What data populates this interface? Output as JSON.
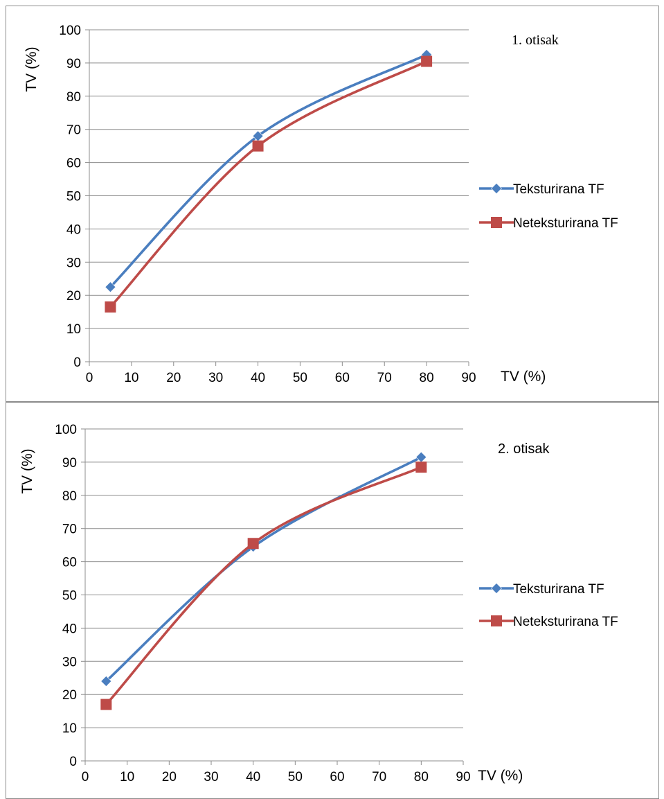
{
  "chart_data": [
    {
      "type": "line",
      "title": "1. otisak",
      "xlabel": "TV (%)",
      "ylabel": "TV (%)",
      "xlim": [
        0,
        90
      ],
      "ylim": [
        0,
        100
      ],
      "xticks": [
        "0",
        "10",
        "20",
        "30",
        "40",
        "50",
        "60",
        "70",
        "80",
        "90"
      ],
      "yticks": [
        "0",
        "10",
        "20",
        "30",
        "40",
        "50",
        "60",
        "70",
        "80",
        "90",
        "100"
      ],
      "grid": "horizontal",
      "legend": "right",
      "x": [
        5,
        40,
        80
      ],
      "series": [
        {
          "name": "Teksturirana TF",
          "values": [
            22.5,
            68,
            92.5
          ],
          "color": "#4a7ebf",
          "marker": "diamond"
        },
        {
          "name": "Neteksturirana TF",
          "values": [
            16.5,
            65,
            90.5
          ],
          "color": "#be4b48",
          "marker": "square"
        }
      ]
    },
    {
      "type": "line",
      "title": "2. otisak",
      "xlabel": "TV (%)",
      "ylabel": "TV (%)",
      "xlim": [
        0,
        90
      ],
      "ylim": [
        0,
        100
      ],
      "xticks": [
        "0",
        "10",
        "20",
        "30",
        "40",
        "50",
        "60",
        "70",
        "80",
        "90"
      ],
      "yticks": [
        "0",
        "10",
        "20",
        "30",
        "40",
        "50",
        "60",
        "70",
        "80",
        "90",
        "100"
      ],
      "grid": "horizontal",
      "legend": "right",
      "x": [
        5,
        40,
        80
      ],
      "series": [
        {
          "name": "Teksturirana TF",
          "values": [
            24,
            64.5,
            91.5
          ],
          "color": "#4a7ebf",
          "marker": "diamond"
        },
        {
          "name": "Neteksturirana TF",
          "values": [
            17,
            65.5,
            88.5
          ],
          "color": "#be4b48",
          "marker": "square"
        }
      ]
    }
  ]
}
